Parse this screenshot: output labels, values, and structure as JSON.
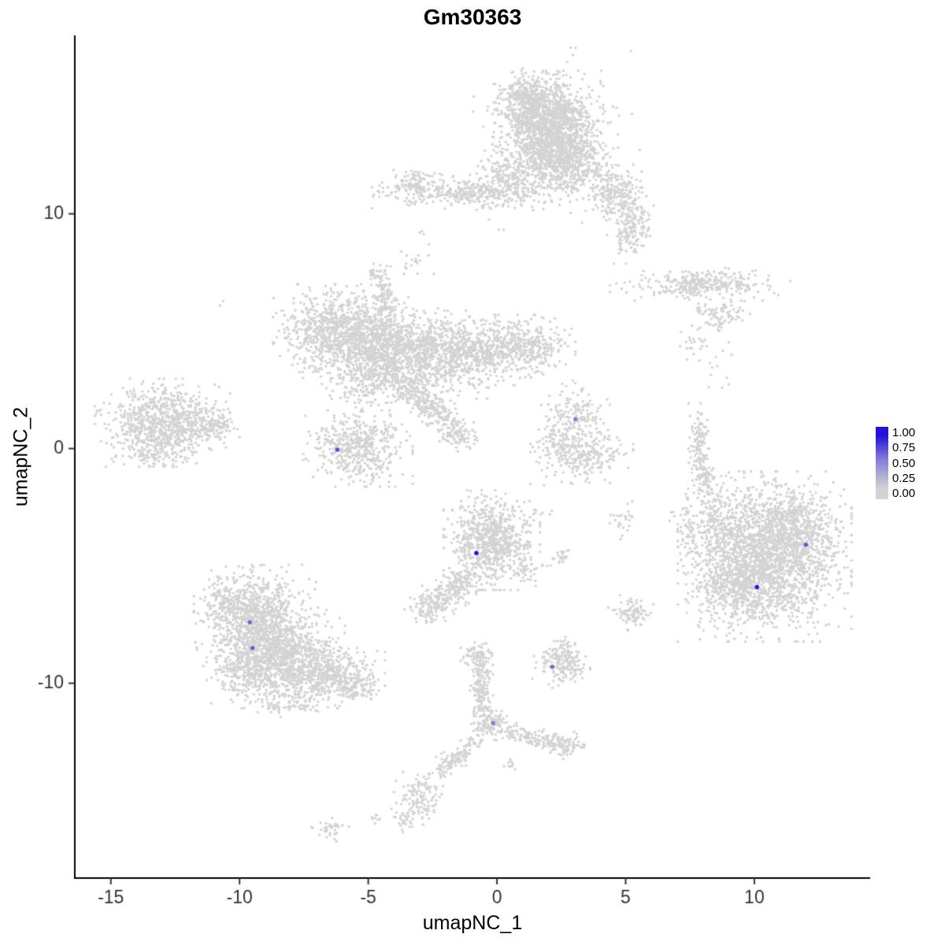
{
  "chart_data": {
    "type": "scatter",
    "title": "Gm30363",
    "xlabel": "umapNC_1",
    "ylabel": "umapNC_2",
    "xlim": [
      -16.4,
      14.5
    ],
    "ylim": [
      -18.3,
      17.6
    ],
    "x_ticks": [
      -15,
      -10,
      -5,
      0,
      5,
      10
    ],
    "y_ticks": [
      -10,
      0,
      10
    ],
    "grid": false,
    "legend_position": "right",
    "point_color": "#d3d3d3",
    "low_color": "#d3d3d3",
    "high_color": "#2312d9",
    "axis_color": "#000000",
    "tick_label_color": "#333333",
    "legend": {
      "ticks": [
        "1.00",
        "0.75",
        "0.50",
        "0.25",
        "0.00"
      ]
    },
    "clusters": [
      {
        "x": 2.0,
        "y": 13.6,
        "sx": 0.85,
        "sy": 1.0,
        "n": 1500
      },
      {
        "x": 1.2,
        "y": 14.9,
        "sx": 0.55,
        "sy": 0.45,
        "n": 260
      },
      {
        "x": 2.9,
        "y": 12.3,
        "sx": 0.6,
        "sy": 0.6,
        "n": 360
      },
      {
        "x": 2.2,
        "y": 13.2,
        "sx": 1.35,
        "sy": 1.55,
        "n": 260
      },
      {
        "x": 4.6,
        "y": 10.9,
        "sx": 0.5,
        "sy": 0.5,
        "n": 220
      },
      {
        "x": 5.2,
        "y": 9.5,
        "sx": 0.38,
        "sy": 0.65,
        "n": 170
      },
      {
        "x": -1.1,
        "y": 10.9,
        "sx": 1.5,
        "sy": 0.3,
        "n": 400
      },
      {
        "x": -3.2,
        "y": 11.3,
        "sx": 0.4,
        "sy": 0.3,
        "n": 90
      },
      {
        "x": 0.6,
        "y": 11.7,
        "sx": 0.7,
        "sy": 0.45,
        "n": 170
      },
      {
        "x": -6.2,
        "y": 5.0,
        "sx": 1.0,
        "sy": 0.8,
        "n": 900
      },
      {
        "x": -4.3,
        "y": 4.2,
        "sx": 1.0,
        "sy": 0.9,
        "n": 900
      },
      {
        "x": -2.3,
        "y": 4.0,
        "sx": 1.0,
        "sy": 0.75,
        "n": 620
      },
      {
        "x": -0.4,
        "y": 4.2,
        "sx": 1.0,
        "sy": 0.6,
        "n": 450
      },
      {
        "x": 1.3,
        "y": 4.3,
        "sx": 0.7,
        "sy": 0.5,
        "n": 240
      },
      {
        "x": -4.4,
        "y": 6.6,
        "sx": 0.18,
        "sy": 0.55,
        "n": 90
      },
      {
        "x": -4.7,
        "y": 7.4,
        "sx": 0.15,
        "sy": 0.2,
        "n": 25
      },
      {
        "x": -2.6,
        "y": 1.8,
        "sx": 0.9,
        "sy": 0.28,
        "rot": -40,
        "n": 260
      },
      {
        "x": -1.5,
        "y": 0.5,
        "sx": 0.35,
        "sy": 0.25,
        "n": 70
      },
      {
        "x": -4.9,
        "y": 2.8,
        "sx": 0.9,
        "sy": 0.5,
        "n": 130
      },
      {
        "x": -5.4,
        "y": 0.0,
        "sx": 0.85,
        "sy": 0.65,
        "n": 520
      },
      {
        "x": -13.0,
        "y": 1.1,
        "sx": 1.05,
        "sy": 0.75,
        "n": 820
      },
      {
        "x": -11.2,
        "y": 0.9,
        "sx": 0.55,
        "sy": 0.3,
        "n": 120
      },
      {
        "x": -13.3,
        "y": -0.1,
        "sx": 0.6,
        "sy": 0.3,
        "n": 90
      },
      {
        "x": 3.1,
        "y": 1.4,
        "sx": 0.55,
        "sy": 0.6,
        "n": 130
      },
      {
        "x": 3.3,
        "y": -0.2,
        "sx": 0.8,
        "sy": 0.55,
        "n": 260
      },
      {
        "x": 2.4,
        "y": 0.6,
        "sx": 0.4,
        "sy": 0.5,
        "n": 80
      },
      {
        "x": 7.9,
        "y": 7.0,
        "sx": 1.4,
        "sy": 0.28,
        "n": 330
      },
      {
        "x": 8.6,
        "y": 5.7,
        "sx": 0.5,
        "sy": 0.28,
        "n": 90
      },
      {
        "x": 7.7,
        "y": 4.5,
        "sx": 0.3,
        "sy": 0.3,
        "n": 22
      },
      {
        "x": 8.7,
        "y": 3.4,
        "sx": 0.25,
        "sy": 0.45,
        "n": 12
      },
      {
        "x": 7.85,
        "y": 0.3,
        "sx": 0.18,
        "sy": 0.65,
        "n": 110
      },
      {
        "x": 8.1,
        "y": -1.2,
        "sx": 0.18,
        "sy": 0.5,
        "n": 70
      },
      {
        "x": 10.4,
        "y": -4.6,
        "sx": 1.35,
        "sy": 1.45,
        "n": 2200
      },
      {
        "x": 11.6,
        "y": -3.2,
        "sx": 0.7,
        "sy": 0.7,
        "n": 300
      },
      {
        "x": 9.3,
        "y": -5.8,
        "sx": 0.75,
        "sy": 0.7,
        "n": 300
      },
      {
        "x": 8.4,
        "y": -3.1,
        "sx": 0.55,
        "sy": 0.75,
        "n": 160
      },
      {
        "x": 7.4,
        "y": -3.2,
        "sx": 0.3,
        "sy": 0.7,
        "n": 30
      },
      {
        "x": -0.2,
        "y": -3.9,
        "sx": 0.75,
        "sy": 0.85,
        "n": 780
      },
      {
        "x": -1.5,
        "y": -5.9,
        "sx": 0.55,
        "sy": 0.32,
        "rot": 33,
        "n": 170
      },
      {
        "x": -2.6,
        "y": -6.7,
        "sx": 0.4,
        "sy": 0.35,
        "n": 130
      },
      {
        "x": 1.2,
        "y": -5.2,
        "sx": 0.3,
        "sy": 0.3,
        "n": 45
      },
      {
        "x": 2.5,
        "y": -4.6,
        "sx": 0.25,
        "sy": 0.2,
        "n": 22
      },
      {
        "x": 5.2,
        "y": -7.0,
        "sx": 0.35,
        "sy": 0.3,
        "n": 90
      },
      {
        "x": 4.9,
        "y": -3.0,
        "sx": 0.25,
        "sy": 0.35,
        "n": 26
      },
      {
        "x": -9.4,
        "y": -7.2,
        "sx": 0.95,
        "sy": 0.9,
        "n": 950
      },
      {
        "x": -8.4,
        "y": -8.9,
        "sx": 1.0,
        "sy": 0.85,
        "n": 950
      },
      {
        "x": -6.6,
        "y": -9.6,
        "sx": 0.9,
        "sy": 0.55,
        "n": 470
      },
      {
        "x": -9.9,
        "y": -9.6,
        "sx": 0.55,
        "sy": 0.5,
        "n": 160
      },
      {
        "x": -8.2,
        "y": -10.8,
        "sx": 0.8,
        "sy": 0.35,
        "n": 90
      },
      {
        "x": -5.4,
        "y": -10.2,
        "sx": 0.4,
        "sy": 0.3,
        "n": 70
      },
      {
        "x": -10.5,
        "y": -6.3,
        "sx": 0.35,
        "sy": 0.35,
        "n": 60
      },
      {
        "x": 2.5,
        "y": -9.2,
        "sx": 0.45,
        "sy": 0.4,
        "n": 180
      },
      {
        "x": 2.7,
        "y": -8.4,
        "sx": 0.2,
        "sy": 0.2,
        "n": 18
      },
      {
        "x": -0.8,
        "y": -8.8,
        "sx": 0.3,
        "sy": 0.28,
        "n": 80
      },
      {
        "x": -0.6,
        "y": -10.3,
        "sx": 0.18,
        "sy": 0.8,
        "n": 170
      },
      {
        "x": -0.25,
        "y": -11.7,
        "sx": 0.3,
        "sy": 0.3,
        "n": 90
      },
      {
        "x": 1.3,
        "y": -12.3,
        "sx": 0.85,
        "sy": 0.18,
        "rot": -14,
        "n": 150
      },
      {
        "x": 2.6,
        "y": -12.6,
        "sx": 0.3,
        "sy": 0.25,
        "n": 70
      },
      {
        "x": -1.6,
        "y": -13.2,
        "sx": 0.7,
        "sy": 0.22,
        "rot": 42,
        "n": 140
      },
      {
        "x": -3.1,
        "y": -14.9,
        "sx": 0.4,
        "sy": 0.45,
        "n": 120
      },
      {
        "x": -3.6,
        "y": -15.9,
        "sx": 0.2,
        "sy": 0.2,
        "n": 22
      },
      {
        "x": 0.6,
        "y": -13.5,
        "sx": 0.18,
        "sy": 0.18,
        "n": 10
      },
      {
        "x": -6.5,
        "y": -16.2,
        "sx": 0.3,
        "sy": 0.25,
        "n": 35
      },
      {
        "x": -4.7,
        "y": -15.6,
        "sx": 0.15,
        "sy": 0.15,
        "n": 10
      },
      {
        "x": -3.2,
        "y": 8.0,
        "sx": 0.3,
        "sy": 0.3,
        "n": 18
      },
      {
        "x": 5.2,
        "y": 8.7,
        "sx": 0.12,
        "sy": 0.12,
        "n": 5
      },
      {
        "x": -10.7,
        "y": 6.2,
        "sx": 0.06,
        "sy": 0.06,
        "n": 2
      },
      {
        "x": -2.9,
        "y": 9.2,
        "sx": 0.08,
        "sy": 0.08,
        "n": 3
      },
      {
        "x": 1.8,
        "y": -2.6,
        "sx": 0.3,
        "sy": 0.2,
        "n": 7
      }
    ],
    "expressed_cells": [
      {
        "x": -6.2,
        "y": -0.05,
        "value": 0.7
      },
      {
        "x": 3.05,
        "y": 1.25,
        "value": 0.45
      },
      {
        "x": -0.8,
        "y": -4.45,
        "value": 1.0
      },
      {
        "x": 10.1,
        "y": -5.9,
        "value": 1.0
      },
      {
        "x": 12.0,
        "y": -4.1,
        "value": 0.65
      },
      {
        "x": -9.6,
        "y": -7.4,
        "value": 0.55
      },
      {
        "x": -9.5,
        "y": -8.5,
        "value": 0.6
      },
      {
        "x": 2.15,
        "y": -9.3,
        "value": 0.55
      },
      {
        "x": -0.15,
        "y": -11.7,
        "value": 0.45
      }
    ]
  }
}
